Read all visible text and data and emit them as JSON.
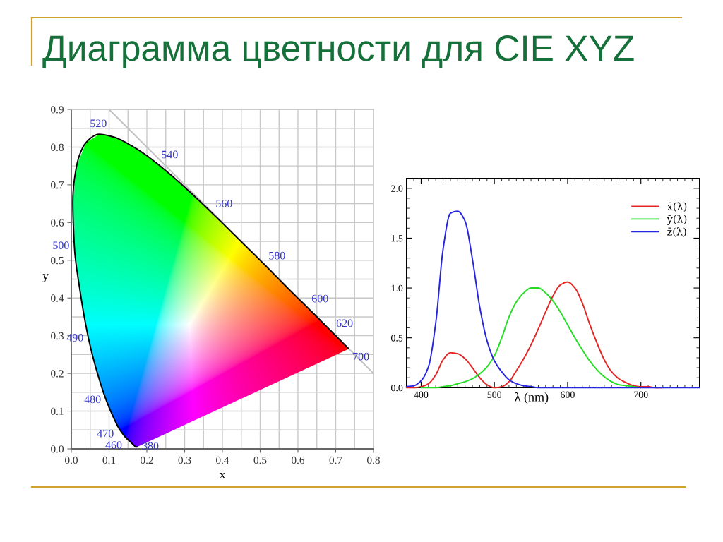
{
  "chart_data": [
    {
      "type": "other",
      "title": "Диаграмма цветности для CIE XYZ"
    },
    {
      "type": "line",
      "xlabel": "x",
      "ylabel": "y",
      "xlim": [
        0.0,
        0.8
      ],
      "ylim": [
        0.0,
        0.9
      ],
      "grid": true,
      "xticks": [
        {
          "value": 0,
          "label": "0.0"
        },
        {
          "value": 0.05,
          "label": null
        },
        0.1,
        {
          "value": 0.15,
          "label": null
        },
        0.2,
        {
          "value": 0.25,
          "label": null
        },
        0.3,
        {
          "value": 0.35,
          "label": null
        },
        0.4,
        {
          "value": 0.45,
          "label": null
        },
        0.5,
        {
          "value": 0.55,
          "label": null
        },
        0.6,
        {
          "value": 0.65,
          "label": null
        },
        0.7,
        {
          "value": 0.75,
          "label": null
        },
        0.8
      ],
      "yticks": [
        {
          "value": 0,
          "label": "0.0"
        },
        {
          "value": 0.05,
          "label": null
        },
        0.1,
        {
          "value": 0.15,
          "label": null
        },
        0.2,
        {
          "value": 0.25,
          "label": null
        },
        0.3,
        {
          "value": 0.35,
          "label": null
        },
        0.4,
        {
          "value": 0.45,
          "label": null
        },
        0.5,
        {
          "value": 0.55,
          "label": null
        },
        0.6,
        {
          "value": 0.65,
          "label": null
        },
        0.7,
        {
          "value": 0.75,
          "label": null
        },
        0.8,
        {
          "value": 0.85,
          "label": null
        },
        0.9
      ],
      "series": [
        {
          "x": [
            0.1,
            0.8
          ],
          "values": [
            0.9,
            0.2
          ],
          "color": "#c0c0c0"
        },
        {
          "x": [
            0.174,
            0.173,
            0.171,
            0.164,
            0.157,
            0.144,
            0.136,
            0.124,
            0.11,
            0.091,
            0.069,
            0.045,
            0.024,
            0.008,
            0.004,
            0.014,
            0.039,
            0.074,
            0.114,
            0.155,
            0.193,
            0.23,
            0.266,
            0.302,
            0.373,
            0.444,
            0.513,
            0.575,
            0.627,
            0.666,
            0.692,
            0.719,
            0.73,
            0.735
          ],
          "values": [
            0.005,
            0.005,
            0.005,
            0.011,
            0.018,
            0.03,
            0.04,
            0.058,
            0.087,
            0.133,
            0.201,
            0.295,
            0.413,
            0.538,
            0.655,
            0.75,
            0.812,
            0.834,
            0.826,
            0.806,
            0.782,
            0.754,
            0.724,
            0.692,
            0.625,
            0.555,
            0.487,
            0.424,
            0.373,
            0.334,
            0.308,
            0.281,
            0.27,
            0.265
          ],
          "color": "#000000"
        }
      ],
      "annotations": [
        {
          "text": "380",
          "x": 0.174,
          "y": 0.005
        },
        {
          "text": "460",
          "x": 0.144,
          "y": 0.03
        },
        {
          "text": "470",
          "x": 0.124,
          "y": 0.058
        },
        {
          "text": "480",
          "x": 0.091,
          "y": 0.133
        },
        {
          "text": "490",
          "x": 0.045,
          "y": 0.295
        },
        {
          "text": "500",
          "x": 0.008,
          "y": 0.538
        },
        {
          "text": "520",
          "x": 0.074,
          "y": 0.834
        },
        {
          "text": "540",
          "x": 0.23,
          "y": 0.754
        },
        {
          "text": "560",
          "x": 0.373,
          "y": 0.625
        },
        {
          "text": "580",
          "x": 0.513,
          "y": 0.487
        },
        {
          "text": "600",
          "x": 0.627,
          "y": 0.373
        },
        {
          "text": "620",
          "x": 0.692,
          "y": 0.308
        },
        {
          "text": "700",
          "x": 0.735,
          "y": 0.265
        }
      ]
    },
    {
      "type": "line",
      "xlabel": "λ (nm)",
      "xlim": [
        380,
        780
      ],
      "ylim": [
        0.0,
        2.1
      ],
      "legend": "top right",
      "xticks": [
        {
          "value": 390,
          "label": null
        },
        400,
        {
          "value": 410,
          "label": null
        },
        {
          "value": 420,
          "label": null
        },
        {
          "value": 430,
          "label": null
        },
        {
          "value": 440,
          "label": null
        },
        {
          "value": 450,
          "label": null
        },
        {
          "value": 460,
          "label": null
        },
        {
          "value": 470,
          "label": null
        },
        {
          "value": 480,
          "label": null
        },
        {
          "value": 490,
          "label": null
        },
        500,
        {
          "value": 510,
          "label": null
        },
        {
          "value": 520,
          "label": null
        },
        {
          "value": 530,
          "label": null
        },
        {
          "value": 540,
          "label": null
        },
        {
          "value": 550,
          "label": null
        },
        {
          "value": 560,
          "label": null
        },
        {
          "value": 570,
          "label": null
        },
        {
          "value": 580,
          "label": null
        },
        {
          "value": 590,
          "label": null
        },
        600,
        {
          "value": 610,
          "label": null
        },
        {
          "value": 620,
          "label": null
        },
        {
          "value": 630,
          "label": null
        },
        {
          "value": 640,
          "label": null
        },
        {
          "value": 650,
          "label": null
        },
        {
          "value": 660,
          "label": null
        },
        {
          "value": 670,
          "label": null
        },
        {
          "value": 680,
          "label": null
        },
        {
          "value": 690,
          "label": null
        },
        700,
        {
          "value": 710,
          "label": null
        },
        {
          "value": 720,
          "label": null
        },
        {
          "value": 730,
          "label": null
        },
        {
          "value": 740,
          "label": null
        },
        {
          "value": 750,
          "label": null
        },
        {
          "value": 760,
          "label": null
        },
        {
          "value": 770,
          "label": null
        }
      ],
      "yticks": [
        {
          "value": 0,
          "label": "0.0"
        },
        {
          "value": 0.1,
          "label": null
        },
        {
          "value": 0.2,
          "label": null
        },
        {
          "value": 0.3,
          "label": null
        },
        {
          "value": 0.4,
          "label": null
        },
        0.5,
        {
          "value": 0.6,
          "label": null
        },
        {
          "value": 0.7,
          "label": null
        },
        {
          "value": 0.8,
          "label": null
        },
        {
          "value": 0.9,
          "label": null
        },
        {
          "value": 1,
          "label": "1.0"
        },
        {
          "value": 1.1,
          "label": null
        },
        {
          "value": 1.2,
          "label": null
        },
        {
          "value": 1.3,
          "label": null
        },
        {
          "value": 1.4,
          "label": null
        },
        1.5,
        {
          "value": 1.6,
          "label": null
        },
        {
          "value": 1.7,
          "label": null
        },
        {
          "value": 1.8,
          "label": null
        },
        {
          "value": 1.9,
          "label": null
        },
        {
          "value": 2,
          "label": "2.0"
        }
      ],
      "x": [
        380,
        390,
        400,
        410,
        420,
        430,
        440,
        450,
        460,
        470,
        480,
        490,
        500,
        510,
        520,
        530,
        540,
        550,
        560,
        570,
        580,
        590,
        600,
        610,
        620,
        630,
        640,
        650,
        660,
        670,
        680,
        690,
        700,
        710,
        720,
        730,
        740,
        750,
        760,
        770,
        780
      ],
      "series": [
        {
          "name": "x̄(λ)",
          "color": "#e52626",
          "values": [
            0.0,
            0.0,
            0.01,
            0.04,
            0.13,
            0.28,
            0.35,
            0.34,
            0.29,
            0.2,
            0.1,
            0.03,
            0.0,
            0.01,
            0.06,
            0.17,
            0.29,
            0.43,
            0.59,
            0.76,
            0.92,
            1.03,
            1.06,
            1.0,
            0.85,
            0.64,
            0.45,
            0.28,
            0.16,
            0.09,
            0.05,
            0.02,
            0.01,
            0.01,
            0.0,
            0.0,
            null,
            null,
            null,
            null,
            null
          ]
        },
        {
          "name": "ȳ(λ)",
          "color": "#26dd26",
          "values": [
            null,
            null,
            0.0,
            0.0,
            0.0,
            0.01,
            0.02,
            0.04,
            0.06,
            0.09,
            0.14,
            0.21,
            0.32,
            0.5,
            0.71,
            0.86,
            0.95,
            1.0,
            1.0,
            0.95,
            0.87,
            0.76,
            0.63,
            0.5,
            0.38,
            0.27,
            0.18,
            0.11,
            0.06,
            0.03,
            0.02,
            0.01,
            0.0,
            null,
            null,
            null,
            null,
            null,
            null,
            null,
            null
          ]
        },
        {
          "name": "z̄(λ)",
          "color": "#2626e0",
          "values": [
            0.01,
            0.02,
            0.07,
            0.21,
            0.65,
            1.39,
            1.75,
            1.77,
            1.67,
            1.29,
            0.81,
            0.47,
            0.27,
            0.16,
            0.08,
            0.04,
            0.02,
            0.01,
            0.0,
            0.0,
            0.0,
            0.0,
            0.0,
            0.0,
            0.0,
            0.0,
            0.0,
            0.0,
            0.0,
            0.0,
            0.0,
            0.0,
            0.0,
            0.0,
            0.0,
            0.0,
            0.0,
            0.0,
            0.0,
            0.0,
            0.0
          ]
        }
      ]
    }
  ]
}
